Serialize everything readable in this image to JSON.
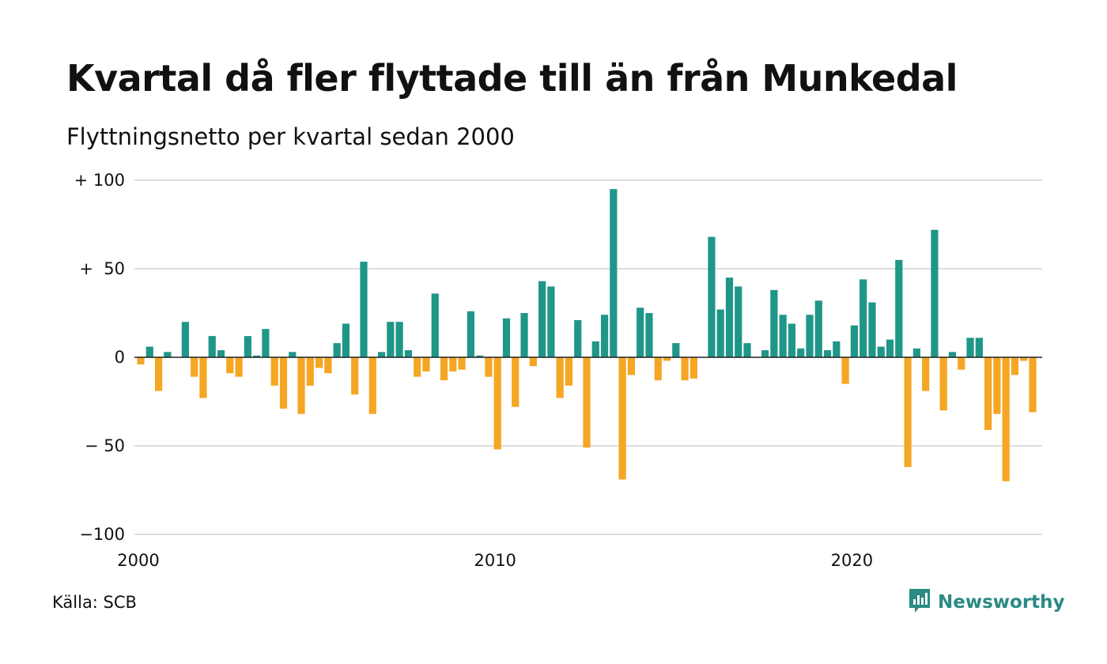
{
  "header": {
    "title": "Kvartal då fler flyttade till än från Munkedal",
    "subtitle": "Flyttningsnetto per kvartal sedan 2000"
  },
  "footer": {
    "source": "Källa: SCB",
    "brand": "Newsworthy"
  },
  "colors": {
    "positive": "#1f9688",
    "negative": "#f5a623",
    "grid": "#dddddd",
    "brand": "#2a8a84"
  },
  "icons": {
    "brand_logo": "chat-bubble-bar-chart-icon"
  },
  "chart_data": {
    "type": "bar",
    "title": "Kvartal då fler flyttade till än från Munkedal",
    "subtitle": "Flyttningsnetto per kvartal sedan 2000",
    "xlabel": "",
    "ylabel": "",
    "ylim": [
      -100,
      100
    ],
    "y_ticks": [
      {
        "value": 100,
        "label": "+ 100"
      },
      {
        "value": 50,
        "label": "+  50"
      },
      {
        "value": 0,
        "label": "0"
      },
      {
        "value": -50,
        "label": "− 50"
      },
      {
        "value": -100,
        "label": "−100"
      }
    ],
    "x_ticks": [
      "2000",
      "2010",
      "2020"
    ],
    "grid": true,
    "legend": "none",
    "start_quarter": "2000 Q1",
    "values": [
      -4,
      6,
      -19,
      3,
      0,
      20,
      -11,
      -23,
      12,
      4,
      -9,
      -11,
      12,
      1,
      16,
      -16,
      -29,
      3,
      -32,
      -16,
      -6,
      -9,
      8,
      19,
      -21,
      54,
      -32,
      3,
      20,
      20,
      4,
      -11,
      -8,
      36,
      -13,
      -8,
      -7,
      26,
      1,
      -11,
      -52,
      22,
      -28,
      25,
      -5,
      43,
      40,
      -23,
      -16,
      21,
      -51,
      9,
      24,
      95,
      -69,
      -10,
      28,
      25,
      -13,
      -2,
      8,
      -13,
      -12,
      0,
      68,
      27,
      45,
      40,
      8,
      0,
      4,
      38,
      24,
      19,
      5,
      24,
      32,
      4,
      9,
      -15,
      18,
      44,
      31,
      6,
      10,
      55,
      -62,
      5,
      -19,
      72,
      -30,
      3,
      -7,
      11,
      11,
      -41,
      -32,
      -70,
      -10,
      -2,
      -31
    ]
  }
}
